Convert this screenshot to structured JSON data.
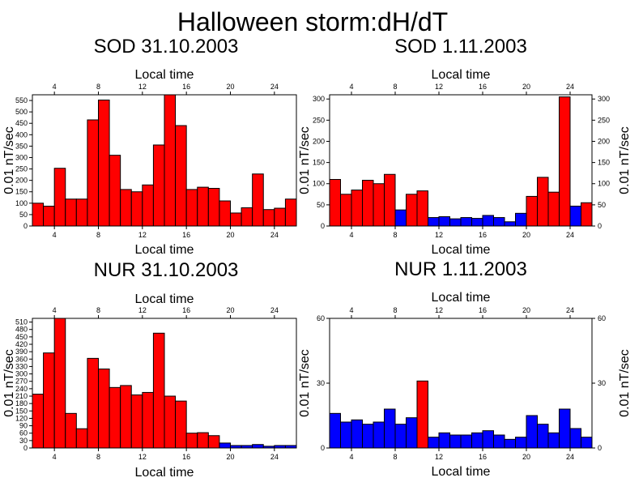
{
  "title": "Halloween storm:dH/dT",
  "colors": {
    "bar_red": "#ff0000",
    "bar_blue": "#0000ff",
    "background": "#ffffff",
    "axis": "#000000"
  },
  "chart_data": [
    {
      "type": "bar",
      "title": "SOD 31.10.2003",
      "xlabel": "Local time",
      "ylabel": "0.01 nT/sec",
      "xlim": [
        2,
        26
      ],
      "ylim": [
        0,
        575
      ],
      "xticks": [
        4,
        8,
        12,
        16,
        20,
        24
      ],
      "yticks": [
        0,
        50,
        100,
        150,
        200,
        250,
        300,
        350,
        400,
        450,
        500,
        550
      ],
      "y_right_axis": false,
      "grid": false,
      "bars": [
        {
          "x": 2.5,
          "value": 100,
          "color": "red"
        },
        {
          "x": 3.5,
          "value": 87,
          "color": "red"
        },
        {
          "x": 4.5,
          "value": 253,
          "color": "red"
        },
        {
          "x": 5.5,
          "value": 118,
          "color": "red"
        },
        {
          "x": 6.5,
          "value": 118,
          "color": "red"
        },
        {
          "x": 7.5,
          "value": 465,
          "color": "red"
        },
        {
          "x": 8.5,
          "value": 552,
          "color": "red"
        },
        {
          "x": 9.5,
          "value": 310,
          "color": "red"
        },
        {
          "x": 10.5,
          "value": 160,
          "color": "red"
        },
        {
          "x": 11.5,
          "value": 150,
          "color": "red"
        },
        {
          "x": 12.5,
          "value": 180,
          "color": "red"
        },
        {
          "x": 13.5,
          "value": 355,
          "color": "red"
        },
        {
          "x": 14.5,
          "value": 575,
          "color": "red"
        },
        {
          "x": 15.5,
          "value": 440,
          "color": "red"
        },
        {
          "x": 16.5,
          "value": 160,
          "color": "red"
        },
        {
          "x": 17.5,
          "value": 170,
          "color": "red"
        },
        {
          "x": 18.5,
          "value": 165,
          "color": "red"
        },
        {
          "x": 19.5,
          "value": 110,
          "color": "red"
        },
        {
          "x": 20.5,
          "value": 57,
          "color": "red"
        },
        {
          "x": 21.5,
          "value": 80,
          "color": "red"
        },
        {
          "x": 22.5,
          "value": 228,
          "color": "red"
        },
        {
          "x": 23.5,
          "value": 72,
          "color": "red"
        },
        {
          "x": 24.5,
          "value": 78,
          "color": "red"
        },
        {
          "x": 25.5,
          "value": 118,
          "color": "red"
        }
      ]
    },
    {
      "type": "bar",
      "title": "SOD 1.11.2003",
      "xlabel": "Local time",
      "ylabel": "0.01 nT/sec",
      "xlim": [
        2,
        26
      ],
      "ylim": [
        0,
        310
      ],
      "xticks": [
        4,
        8,
        12,
        16,
        20,
        24
      ],
      "yticks": [
        0,
        50,
        100,
        150,
        200,
        250,
        300
      ],
      "y_right_axis": true,
      "grid": false,
      "bars": [
        {
          "x": 2.5,
          "value": 110,
          "color": "red"
        },
        {
          "x": 3.5,
          "value": 75,
          "color": "red"
        },
        {
          "x": 4.5,
          "value": 85,
          "color": "red"
        },
        {
          "x": 5.5,
          "value": 108,
          "color": "red"
        },
        {
          "x": 6.5,
          "value": 100,
          "color": "red"
        },
        {
          "x": 7.5,
          "value": 122,
          "color": "red"
        },
        {
          "x": 8.5,
          "value": 38,
          "color": "blue"
        },
        {
          "x": 9.5,
          "value": 75,
          "color": "red"
        },
        {
          "x": 10.5,
          "value": 83,
          "color": "red"
        },
        {
          "x": 11.5,
          "value": 20,
          "color": "blue"
        },
        {
          "x": 12.5,
          "value": 22,
          "color": "blue"
        },
        {
          "x": 13.5,
          "value": 17,
          "color": "blue"
        },
        {
          "x": 14.5,
          "value": 20,
          "color": "blue"
        },
        {
          "x": 15.5,
          "value": 18,
          "color": "blue"
        },
        {
          "x": 16.5,
          "value": 25,
          "color": "blue"
        },
        {
          "x": 17.5,
          "value": 20,
          "color": "blue"
        },
        {
          "x": 18.5,
          "value": 10,
          "color": "blue"
        },
        {
          "x": 19.5,
          "value": 30,
          "color": "blue"
        },
        {
          "x": 20.5,
          "value": 70,
          "color": "red"
        },
        {
          "x": 21.5,
          "value": 115,
          "color": "red"
        },
        {
          "x": 22.5,
          "value": 80,
          "color": "red"
        },
        {
          "x": 23.5,
          "value": 305,
          "color": "red"
        },
        {
          "x": 24.5,
          "value": 47,
          "color": "blue"
        },
        {
          "x": 25.5,
          "value": 55,
          "color": "red"
        }
      ]
    },
    {
      "type": "bar",
      "title": "NUR 31.10.2003",
      "xlabel": "Local time",
      "ylabel": "0.01 nT/sec",
      "xlim": [
        2,
        26
      ],
      "ylim": [
        0,
        525
      ],
      "xticks": [
        4,
        8,
        12,
        16,
        20,
        24
      ],
      "yticks": [
        0,
        30,
        60,
        90,
        120,
        150,
        180,
        210,
        240,
        270,
        300,
        330,
        360,
        390,
        420,
        450,
        480,
        510
      ],
      "y_right_axis": false,
      "grid": false,
      "bars": [
        {
          "x": 2.5,
          "value": 218,
          "color": "red"
        },
        {
          "x": 3.5,
          "value": 385,
          "color": "red"
        },
        {
          "x": 4.5,
          "value": 525,
          "color": "red"
        },
        {
          "x": 5.5,
          "value": 140,
          "color": "red"
        },
        {
          "x": 6.5,
          "value": 78,
          "color": "red"
        },
        {
          "x": 7.5,
          "value": 363,
          "color": "red"
        },
        {
          "x": 8.5,
          "value": 320,
          "color": "red"
        },
        {
          "x": 9.5,
          "value": 245,
          "color": "red"
        },
        {
          "x": 10.5,
          "value": 253,
          "color": "red"
        },
        {
          "x": 11.5,
          "value": 215,
          "color": "red"
        },
        {
          "x": 12.5,
          "value": 225,
          "color": "red"
        },
        {
          "x": 13.5,
          "value": 465,
          "color": "red"
        },
        {
          "x": 14.5,
          "value": 210,
          "color": "red"
        },
        {
          "x": 15.5,
          "value": 190,
          "color": "red"
        },
        {
          "x": 16.5,
          "value": 60,
          "color": "red"
        },
        {
          "x": 17.5,
          "value": 62,
          "color": "red"
        },
        {
          "x": 18.5,
          "value": 50,
          "color": "red"
        },
        {
          "x": 19.5,
          "value": 20,
          "color": "blue"
        },
        {
          "x": 20.5,
          "value": 10,
          "color": "blue"
        },
        {
          "x": 21.5,
          "value": 10,
          "color": "blue"
        },
        {
          "x": 22.5,
          "value": 14,
          "color": "blue"
        },
        {
          "x": 23.5,
          "value": 7,
          "color": "blue"
        },
        {
          "x": 24.5,
          "value": 10,
          "color": "blue"
        },
        {
          "x": 25.5,
          "value": 10,
          "color": "blue"
        }
      ]
    },
    {
      "type": "bar",
      "title": "NUR 1.11.2003",
      "xlabel": "Local time",
      "ylabel": "0.01 nT/sec",
      "xlim": [
        2,
        26
      ],
      "ylim": [
        0,
        60
      ],
      "xticks": [
        4,
        8,
        12,
        16,
        20,
        24
      ],
      "yticks": [
        0,
        30,
        60
      ],
      "y_right_axis": true,
      "grid": false,
      "bars": [
        {
          "x": 2.5,
          "value": 16,
          "color": "blue"
        },
        {
          "x": 3.5,
          "value": 12,
          "color": "blue"
        },
        {
          "x": 4.5,
          "value": 13,
          "color": "blue"
        },
        {
          "x": 5.5,
          "value": 11,
          "color": "blue"
        },
        {
          "x": 6.5,
          "value": 12,
          "color": "blue"
        },
        {
          "x": 7.5,
          "value": 18,
          "color": "blue"
        },
        {
          "x": 8.5,
          "value": 11,
          "color": "blue"
        },
        {
          "x": 9.5,
          "value": 14,
          "color": "blue"
        },
        {
          "x": 10.5,
          "value": 31,
          "color": "red"
        },
        {
          "x": 11.5,
          "value": 5,
          "color": "blue"
        },
        {
          "x": 12.5,
          "value": 7,
          "color": "blue"
        },
        {
          "x": 13.5,
          "value": 6,
          "color": "blue"
        },
        {
          "x": 14.5,
          "value": 6,
          "color": "blue"
        },
        {
          "x": 15.5,
          "value": 7,
          "color": "blue"
        },
        {
          "x": 16.5,
          "value": 8,
          "color": "blue"
        },
        {
          "x": 17.5,
          "value": 6,
          "color": "blue"
        },
        {
          "x": 18.5,
          "value": 4,
          "color": "blue"
        },
        {
          "x": 19.5,
          "value": 5,
          "color": "blue"
        },
        {
          "x": 20.5,
          "value": 15,
          "color": "blue"
        },
        {
          "x": 21.5,
          "value": 11,
          "color": "blue"
        },
        {
          "x": 22.5,
          "value": 7,
          "color": "blue"
        },
        {
          "x": 23.5,
          "value": 18,
          "color": "blue"
        },
        {
          "x": 24.5,
          "value": 9,
          "color": "blue"
        },
        {
          "x": 25.5,
          "value": 5,
          "color": "blue"
        }
      ]
    }
  ]
}
